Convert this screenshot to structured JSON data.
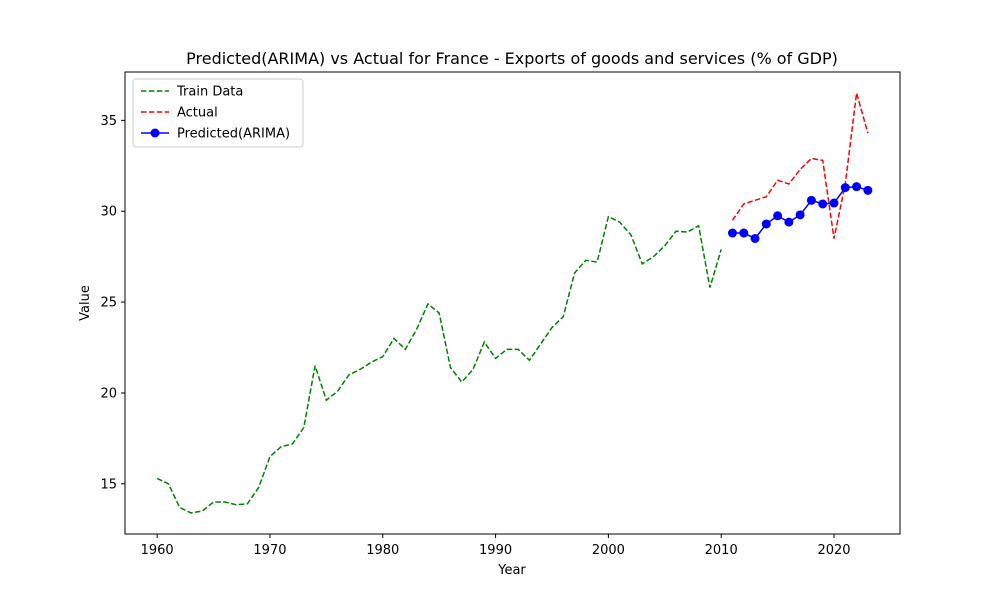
{
  "chart_data": {
    "type": "line",
    "title": "Predicted(ARIMA) vs Actual for France - Exports of goods and services (% of GDP)",
    "xlabel": "Year",
    "ylabel": "Value",
    "xlim": [
      1957.15,
      2025.85
    ],
    "ylim": [
      12.24,
      37.66
    ],
    "xticks": [
      1960,
      1970,
      1980,
      1990,
      2000,
      2010,
      2020
    ],
    "yticks": [
      15,
      20,
      25,
      30,
      35
    ],
    "grid": false,
    "legend_position": "top-left",
    "series": [
      {
        "name": "Train Data",
        "color": "#008000",
        "style": "dashed",
        "marker": "none",
        "x": [
          1960,
          1961,
          1962,
          1963,
          1964,
          1965,
          1966,
          1967,
          1968,
          1969,
          1970,
          1971,
          1972,
          1973,
          1974,
          1975,
          1976,
          1977,
          1978,
          1979,
          1980,
          1981,
          1982,
          1983,
          1984,
          1985,
          1986,
          1987,
          1988,
          1989,
          1990,
          1991,
          1992,
          1993,
          1994,
          1995,
          1996,
          1997,
          1998,
          1999,
          2000,
          2001,
          2002,
          2003,
          2004,
          2005,
          2006,
          2007,
          2008,
          2009,
          2010
        ],
        "y": [
          15.3,
          15.0,
          13.7,
          13.4,
          13.5,
          14.0,
          14.0,
          13.85,
          13.9,
          14.8,
          16.5,
          17.05,
          17.2,
          18.1,
          21.5,
          19.6,
          20.1,
          21.0,
          21.3,
          21.7,
          22.0,
          23.0,
          22.4,
          23.5,
          24.9,
          24.4,
          21.4,
          20.6,
          21.3,
          22.8,
          21.9,
          22.4,
          22.4,
          21.8,
          22.7,
          23.6,
          24.2,
          26.6,
          27.3,
          27.2,
          29.7,
          29.4,
          28.7,
          27.1,
          27.5,
          28.1,
          28.9,
          28.85,
          29.2,
          25.8,
          27.9
        ]
      },
      {
        "name": "Actual",
        "color": "#ff0000",
        "style": "dashed",
        "marker": "none",
        "x": [
          2011,
          2012,
          2013,
          2014,
          2015,
          2016,
          2017,
          2018,
          2019,
          2020,
          2021,
          2022,
          2023
        ],
        "y": [
          29.5,
          30.4,
          30.6,
          30.8,
          31.7,
          31.5,
          32.3,
          32.9,
          32.8,
          28.5,
          31.5,
          36.5,
          34.3
        ]
      },
      {
        "name": "Predicted(ARIMA)",
        "color": "#0000ff",
        "style": "solid",
        "marker": "circle",
        "x": [
          2011,
          2012,
          2013,
          2014,
          2015,
          2016,
          2017,
          2018,
          2019,
          2020,
          2021,
          2022,
          2023
        ],
        "y": [
          28.8,
          28.8,
          28.5,
          29.3,
          29.75,
          29.4,
          29.8,
          30.6,
          30.4,
          30.45,
          31.3,
          31.35,
          31.15
        ]
      }
    ]
  }
}
